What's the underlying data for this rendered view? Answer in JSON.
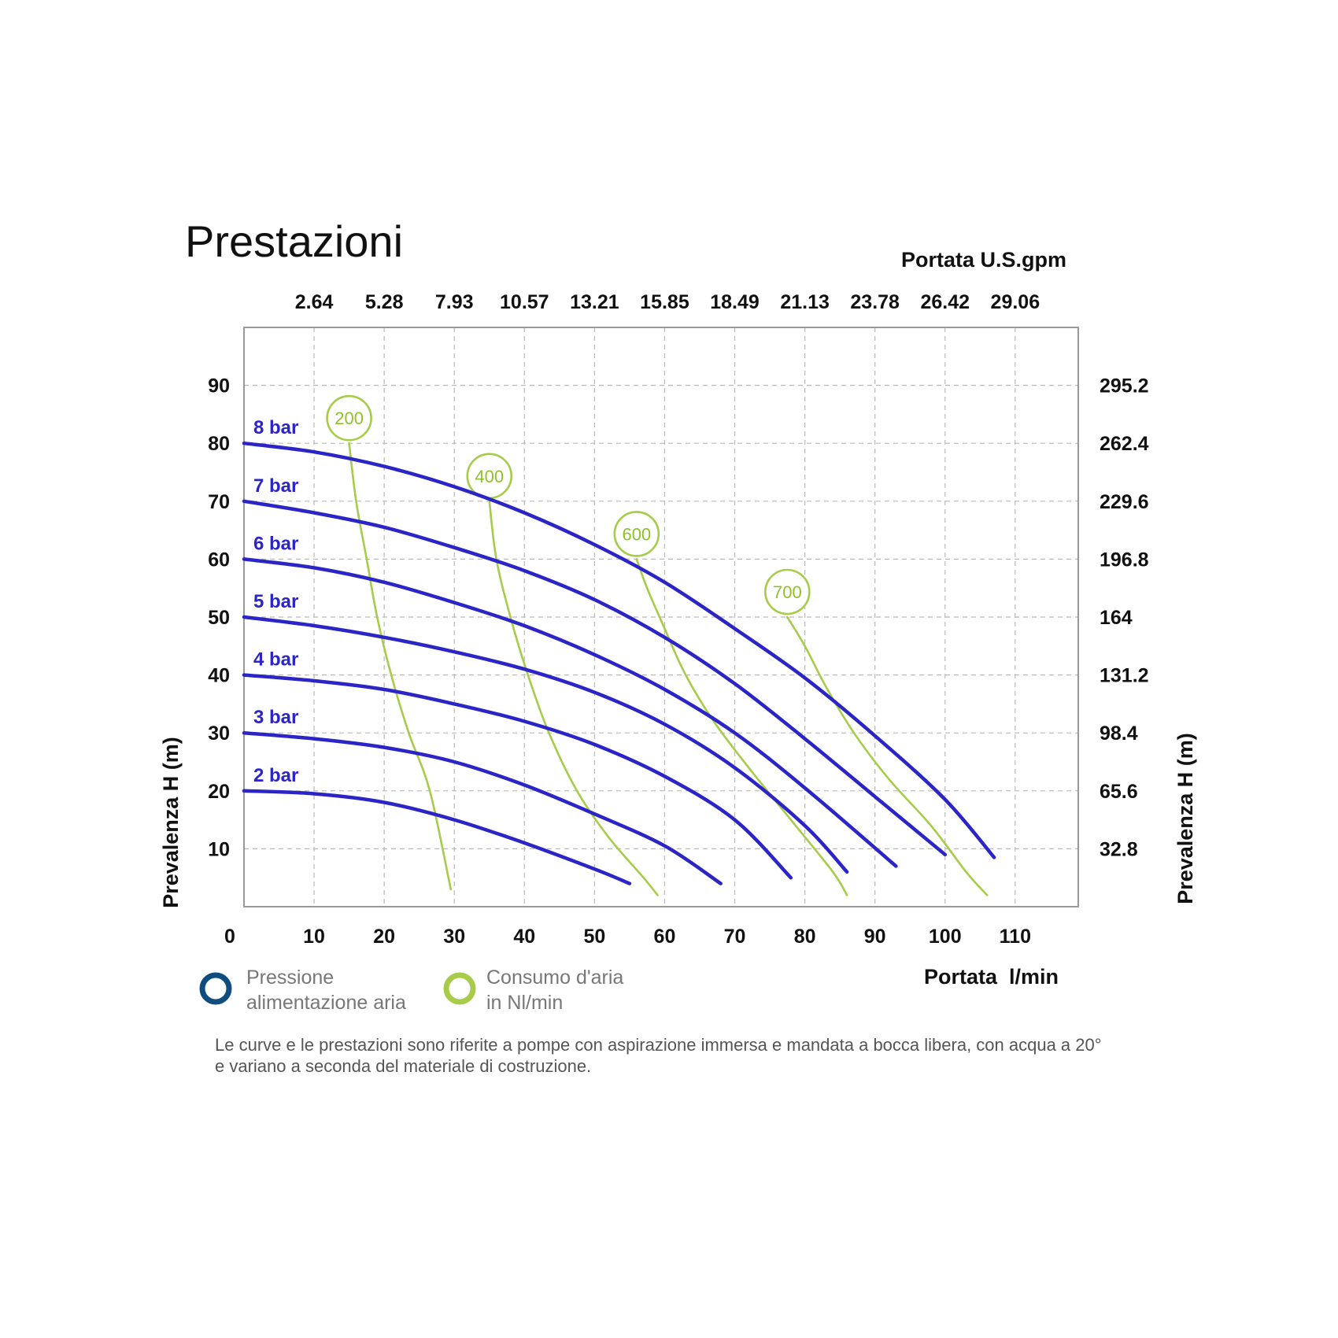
{
  "chart_data": {
    "type": "line",
    "title": "Prestazioni",
    "xlabel": "Portata  l/min",
    "ylabel": "Prevalenza H (m)",
    "x2label": "Portata U.S.gpm",
    "y2label": "Prevalenza H (m)",
    "xlim": [
      0,
      119
    ],
    "ylim": [
      0,
      100
    ],
    "grid": true,
    "x_ticks": [
      0,
      10,
      20,
      30,
      40,
      50,
      60,
      70,
      80,
      90,
      100,
      110
    ],
    "x_tick_labels": [
      "0",
      "10",
      "20",
      "30",
      "40",
      "50",
      "60",
      "70",
      "80",
      "90",
      "100",
      "110"
    ],
    "y_ticks": [
      10,
      20,
      30,
      40,
      50,
      60,
      70,
      80,
      90
    ],
    "y_tick_labels": [
      "10",
      "20",
      "30",
      "40",
      "50",
      "60",
      "70",
      "80",
      "90"
    ],
    "x2_ticks": [
      10,
      20,
      30,
      40,
      50,
      60,
      70,
      80,
      90,
      100,
      110
    ],
    "x2_tick_labels": [
      "2.64",
      "5.28",
      "7.93",
      "10.57",
      "13.21",
      "15.85",
      "18.49",
      "21.13",
      "23.78",
      "26.42",
      "29.06"
    ],
    "y2_ticks": [
      10,
      20,
      30,
      40,
      50,
      60,
      70,
      80,
      90
    ],
    "y2_tick_labels": [
      "32.8",
      "65.6",
      "98.4",
      "131.2",
      "164",
      "196.8",
      "229.6",
      "262.4",
      "295.2"
    ],
    "series": [
      {
        "name": "2 bar",
        "group": "pressure",
        "x": [
          0,
          10,
          20,
          30,
          40,
          50,
          55
        ],
        "y": [
          20,
          19.5,
          18,
          15,
          11,
          6.5,
          4
        ]
      },
      {
        "name": "3 bar",
        "group": "pressure",
        "x": [
          0,
          10,
          20,
          30,
          40,
          50,
          60,
          68
        ],
        "y": [
          30,
          29,
          27.5,
          25,
          21,
          16,
          10.5,
          4
        ]
      },
      {
        "name": "4 bar",
        "group": "pressure",
        "x": [
          0,
          10,
          20,
          30,
          40,
          50,
          60,
          70,
          78
        ],
        "y": [
          40,
          39,
          37.5,
          35,
          32,
          28,
          22.5,
          15,
          5
        ]
      },
      {
        "name": "5 bar",
        "group": "pressure",
        "x": [
          0,
          10,
          20,
          30,
          40,
          50,
          60,
          70,
          80,
          86
        ],
        "y": [
          50,
          48.5,
          46.5,
          44,
          41,
          37,
          31.5,
          24,
          14,
          6
        ]
      },
      {
        "name": "6 bar",
        "group": "pressure",
        "x": [
          0,
          10,
          20,
          30,
          40,
          50,
          60,
          70,
          80,
          93
        ],
        "y": [
          60,
          58.5,
          56,
          52.5,
          48.5,
          43.5,
          37.5,
          30,
          20.5,
          7
        ]
      },
      {
        "name": "7 bar",
        "group": "pressure",
        "x": [
          0,
          10,
          20,
          30,
          40,
          50,
          60,
          70,
          80,
          90,
          100
        ],
        "y": [
          70,
          68,
          65.5,
          62,
          58,
          53,
          46.5,
          38.5,
          29,
          19,
          9
        ]
      },
      {
        "name": "8 bar",
        "group": "pressure",
        "x": [
          0,
          10,
          20,
          30,
          40,
          50,
          60,
          70,
          80,
          90,
          100,
          107
        ],
        "y": [
          80,
          78.5,
          76,
          72.5,
          68,
          62.5,
          56,
          48,
          39.5,
          29.5,
          18.5,
          8.5
        ]
      },
      {
        "name": "200",
        "group": "air",
        "x": [
          15,
          16,
          17.5,
          19,
          21,
          23.5,
          26.5,
          29.5
        ],
        "y": [
          80,
          70,
          60,
          50,
          40,
          30,
          20,
          3
        ]
      },
      {
        "name": "400",
        "group": "air",
        "x": [
          35,
          36,
          38,
          40.5,
          43.5,
          47.5,
          52,
          57,
          59
        ],
        "y": [
          70,
          60,
          50,
          40,
          30,
          20,
          12,
          5,
          2
        ]
      },
      {
        "name": "600",
        "group": "air",
        "x": [
          56,
          57.5,
          60,
          63,
          67,
          72,
          78,
          84,
          86
        ],
        "y": [
          60,
          55,
          48,
          40,
          32,
          24,
          15,
          6,
          2
        ]
      },
      {
        "name": "700",
        "group": "air",
        "x": [
          77.5,
          80,
          83,
          87,
          92,
          98,
          103,
          106
        ],
        "y": [
          50,
          45,
          38,
          30,
          22,
          14,
          6,
          2
        ]
      }
    ]
  },
  "legend": {
    "pressure_text": [
      "Pressione",
      "alimentazione aria"
    ],
    "air_text": [
      "Consumo d'aria",
      "in Nl/min"
    ]
  },
  "note": [
    "Le curve e le prestazioni sono riferite a pompe con aspirazione immersa e mandata a bocca libera, con acqua a 20°",
    "e variano a seconda del materiale di costruzione."
  ],
  "colors": {
    "pressure": "#2b24c6",
    "air": "#a6cc4a",
    "legend_pressure": "#0e4d7d",
    "legend_air": "#a6cc4a"
  }
}
